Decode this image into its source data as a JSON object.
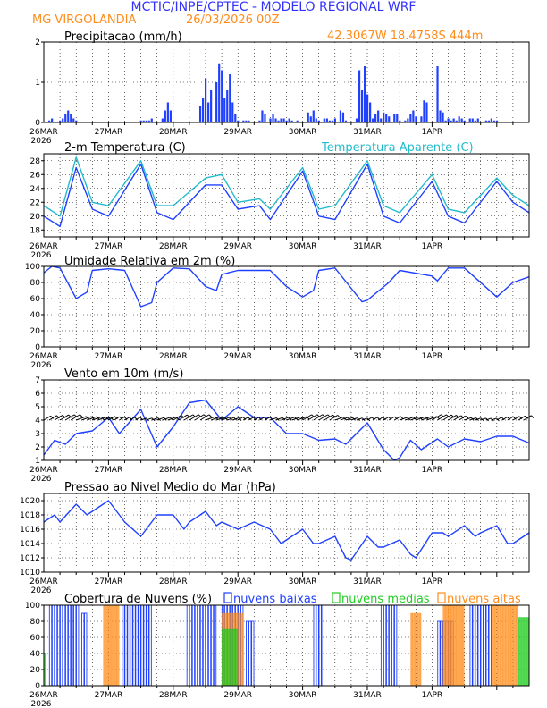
{
  "header": {
    "line1": "MCTIC/INPE/CPTEC - MODELO REGIONAL WRF",
    "location": "MG VIRGOLANDIA",
    "run": "26/03/2026 00Z",
    "coords": "42.3067W 18.4758S 444m",
    "colors": {
      "title": "#3333ff",
      "accent": "#ff8c1a"
    }
  },
  "chart_data": [
    {
      "type": "bar",
      "title": "Precipitacao (mm/h)",
      "ylim": [
        0,
        2
      ],
      "yticks": [
        "0",
        "1",
        "2"
      ],
      "x_labels": [
        "26MAR\n2026",
        "27MAR",
        "28MAR",
        "29MAR",
        "30MAR",
        "31MAR",
        "1APR"
      ],
      "color": "#2040ff",
      "hours": [
        2,
        3,
        6,
        7,
        8,
        9,
        10,
        11,
        12,
        36,
        37,
        38,
        39,
        40,
        44,
        45,
        46,
        47,
        58,
        59,
        60,
        61,
        62,
        64,
        65,
        66,
        67,
        68,
        69,
        70,
        71,
        72,
        74,
        75,
        76,
        80,
        81,
        82,
        84,
        85,
        86,
        87,
        88,
        89,
        90,
        91,
        92,
        94,
        98,
        99,
        100,
        101,
        102,
        104,
        105,
        106,
        107,
        108,
        110,
        111,
        112,
        116,
        117,
        118,
        119,
        120,
        121,
        122,
        123,
        124,
        125,
        126,
        127,
        128,
        130,
        131,
        132,
        134,
        135,
        136,
        137,
        138,
        140,
        141,
        142,
        146,
        147,
        148,
        149,
        150,
        151,
        152,
        153,
        154,
        155,
        156,
        158,
        159,
        160,
        161,
        164,
        165,
        166,
        167,
        168
      ],
      "values": [
        0.05,
        0.1,
        0.05,
        0.1,
        0.2,
        0.3,
        0.2,
        0.1,
        0.05,
        0.05,
        0.05,
        0.05,
        0.05,
        0.1,
        0.1,
        0.3,
        0.5,
        0.3,
        0.4,
        0.6,
        1.1,
        0.5,
        0.8,
        1.0,
        1.45,
        1.3,
        0.6,
        0.8,
        1.2,
        0.5,
        0.2,
        0.05,
        0.05,
        0.05,
        0.05,
        0.05,
        0.3,
        0.2,
        0.1,
        0.2,
        0.1,
        0.05,
        0.1,
        0.1,
        0.05,
        0.1,
        0.05,
        0.05,
        0.25,
        0.15,
        0.3,
        0.1,
        0.05,
        0.1,
        0.1,
        0.05,
        0.05,
        0.1,
        0.3,
        0.25,
        0.05,
        0.1,
        1.3,
        0.8,
        1.4,
        0.7,
        0.5,
        0.1,
        0.2,
        0.3,
        0.1,
        0.25,
        0.2,
        0.15,
        0.2,
        0.2,
        0.05,
        0.05,
        0.1,
        0.2,
        0.3,
        0.15,
        0.15,
        0.55,
        0.5,
        1.4,
        0.3,
        0.25,
        0.05,
        0.1,
        0.05,
        0.1,
        0.05,
        0.15,
        0.1,
        0.05,
        0.1,
        0.1,
        0.05,
        0.1,
        0.05,
        0.05,
        0.1,
        0.05,
        0.05
      ]
    },
    {
      "type": "line",
      "title": "2-m Temperatura (C)",
      "title2": "Temperatura Aparente (C)",
      "ylim": [
        17,
        29
      ],
      "yticks": [
        "18",
        "20",
        "22",
        "24",
        "26",
        "28"
      ],
      "x_labels": [
        "26MAR\n2026",
        "27MAR",
        "28MAR",
        "29MAR",
        "30MAR",
        "31MAR",
        "1APR"
      ],
      "series": [
        {
          "name": "2-m Temperatura (C)",
          "color": "#2040ff",
          "x": [
            0,
            6,
            12,
            18,
            24,
            36,
            42,
            48,
            60,
            66,
            72,
            80,
            84,
            96,
            102,
            108,
            120,
            126,
            132,
            144,
            150,
            156,
            168,
            174,
            180
          ],
          "values": [
            20,
            18.5,
            27,
            21,
            20,
            27.5,
            20.5,
            19.5,
            24.5,
            24.5,
            21,
            21.5,
            19.5,
            26.5,
            20,
            19.5,
            27.5,
            20,
            19,
            25,
            20,
            19,
            25,
            22,
            20.5
          ]
        },
        {
          "name": "Temperatura Aparente (C)",
          "color": "#22bbcc",
          "x": [
            0,
            6,
            12,
            18,
            24,
            36,
            42,
            48,
            60,
            66,
            72,
            80,
            84,
            96,
            102,
            108,
            120,
            126,
            132,
            144,
            150,
            156,
            168,
            174,
            180
          ],
          "values": [
            21.5,
            20,
            28.5,
            22,
            21.5,
            28,
            21.5,
            21.5,
            25.5,
            26,
            22,
            22.5,
            21,
            27,
            21,
            21.5,
            28,
            21.5,
            20.5,
            26,
            21,
            20.5,
            25.5,
            23,
            21.5
          ]
        }
      ]
    },
    {
      "type": "line",
      "title": "Umidade Relativa em 2m (%)",
      "ylim": [
        0,
        100
      ],
      "yticks": [
        "0",
        "20",
        "40",
        "60",
        "80",
        "100"
      ],
      "x_labels": [
        "26MAR\n2026",
        "27MAR",
        "28MAR",
        "29MAR",
        "30MAR",
        "31MAR",
        "1APR"
      ],
      "series": [
        {
          "name": "Umidade Relativa em 2m (%)",
          "color": "#2040ff",
          "x": [
            0,
            3,
            6,
            12,
            16,
            18,
            24,
            30,
            36,
            40,
            42,
            48,
            54,
            60,
            64,
            66,
            72,
            84,
            90,
            96,
            100,
            102,
            108,
            118,
            120,
            128,
            132,
            144,
            146,
            150,
            156,
            168,
            170,
            174,
            180
          ],
          "values": [
            92,
            100,
            98,
            60,
            68,
            95,
            97,
            95,
            50,
            55,
            80,
            98,
            97,
            75,
            70,
            90,
            95,
            95,
            75,
            62,
            70,
            95,
            98,
            56,
            58,
            80,
            95,
            88,
            82,
            98,
            98,
            62,
            68,
            80,
            87
          ]
        }
      ]
    },
    {
      "type": "line",
      "title": "Vento em 10m (m/s)",
      "ylim": [
        1,
        7
      ],
      "yticks": [
        "1",
        "2",
        "3",
        "4",
        "5",
        "6",
        "7"
      ],
      "x_labels": [
        "26MAR\n2026",
        "27MAR",
        "28MAR",
        "29MAR",
        "30MAR",
        "31MAR",
        "1APR"
      ],
      "series": [
        {
          "name": "Vento em 10m (m/s)",
          "color": "#2040ff",
          "x": [
            0,
            4,
            8,
            12,
            18,
            24,
            28,
            36,
            42,
            48,
            54,
            60,
            66,
            72,
            78,
            84,
            90,
            96,
            102,
            108,
            112,
            120,
            126,
            130,
            132,
            136,
            140,
            146,
            150,
            156,
            162,
            168,
            174,
            180
          ],
          "values": [
            1.4,
            2.5,
            2.2,
            3.0,
            3.2,
            4.2,
            3.0,
            4.8,
            2.0,
            3.5,
            5.3,
            5.5,
            4.0,
            5.0,
            4.2,
            4.2,
            3.0,
            3.0,
            2.5,
            2.6,
            2.2,
            3.8,
            1.8,
            1.0,
            1.2,
            2.5,
            1.8,
            2.6,
            2.0,
            2.6,
            2.4,
            2.8,
            2.8,
            2.3
          ]
        }
      ],
      "barb_color": "#000000"
    },
    {
      "type": "line",
      "title": "Pressao ao Nivel Medio do Mar (hPa)",
      "ylim": [
        1010,
        1021
      ],
      "yticks": [
        "1010",
        "1012",
        "1014",
        "1016",
        "1018",
        "1020"
      ],
      "x_labels": [
        "26MAR\n2026",
        "27MAR",
        "28MAR",
        "29MAR",
        "30MAR",
        "31MAR",
        "1APR"
      ],
      "series": [
        {
          "name": "Pressao ao Nivel Medio do Mar (hPa)",
          "color": "#2040ff",
          "x": [
            0,
            4,
            6,
            12,
            16,
            18,
            24,
            28,
            30,
            36,
            42,
            48,
            52,
            54,
            60,
            64,
            66,
            72,
            78,
            84,
            88,
            90,
            96,
            100,
            102,
            108,
            112,
            114,
            120,
            124,
            126,
            132,
            136,
            138,
            144,
            148,
            150,
            156,
            160,
            162,
            168,
            172,
            174,
            180
          ],
          "values": [
            1017,
            1018,
            1017,
            1019.5,
            1018,
            1018.5,
            1020,
            1018,
            1017,
            1015,
            1018,
            1018,
            1016,
            1017,
            1018.5,
            1016.5,
            1017,
            1016,
            1017,
            1016,
            1014,
            1014.5,
            1016,
            1014,
            1014,
            1015,
            1012,
            1011.7,
            1015,
            1013.5,
            1013.5,
            1014.5,
            1012.5,
            1012,
            1015.5,
            1015.5,
            1015,
            1016.5,
            1015,
            1015.5,
            1016.5,
            1014,
            1014,
            1015.5
          ]
        }
      ]
    },
    {
      "type": "bar",
      "title": "Cobertura de Nuvens (%)",
      "ylim": [
        0,
        100
      ],
      "yticks": [
        "0",
        "20",
        "40",
        "60",
        "80",
        "100"
      ],
      "x_labels": [
        "26MAR\n2026",
        "27MAR",
        "28MAR",
        "29MAR",
        "30MAR",
        "31MAR",
        "1APR"
      ],
      "legend": [
        {
          "name": "nuvens baixas",
          "color": "#2040ff"
        },
        {
          "name": "nuvens medias",
          "color": "#22cc22"
        },
        {
          "name": "nuvens altas",
          "color": "#ff8c1a"
        }
      ],
      "segments": [
        {
          "layer": "nuvens baixas",
          "start": 2,
          "end": 13,
          "value": 100
        },
        {
          "layer": "nuvens baixas",
          "start": 14,
          "end": 16,
          "value": 90
        },
        {
          "layer": "nuvens baixas",
          "start": 29,
          "end": 40,
          "value": 100
        },
        {
          "layer": "nuvens baixas",
          "start": 53,
          "end": 64,
          "value": 100
        },
        {
          "layer": "nuvens baixas",
          "start": 66,
          "end": 74,
          "value": 100
        },
        {
          "layer": "nuvens baixas",
          "start": 75,
          "end": 78,
          "value": 80
        },
        {
          "layer": "nuvens baixas",
          "start": 100,
          "end": 104,
          "value": 100
        },
        {
          "layer": "nuvens baixas",
          "start": 125,
          "end": 131,
          "value": 100
        },
        {
          "layer": "nuvens baixas",
          "start": 146,
          "end": 152,
          "value": 80
        },
        {
          "layer": "nuvens baixas",
          "start": 158,
          "end": 166,
          "value": 100
        },
        {
          "layer": "nuvens altas",
          "start": 22,
          "end": 28,
          "value": 100
        },
        {
          "layer": "nuvens altas",
          "start": 66,
          "end": 74,
          "value": 90
        },
        {
          "layer": "nuvens altas",
          "start": 136,
          "end": 140,
          "value": 90
        },
        {
          "layer": "nuvens altas",
          "start": 148,
          "end": 156,
          "value": 100
        },
        {
          "layer": "nuvens altas",
          "start": 166,
          "end": 176,
          "value": 100
        },
        {
          "layer": "nuvens medias",
          "start": 0,
          "end": 1,
          "value": 40
        },
        {
          "layer": "nuvens medias",
          "start": 66,
          "end": 72,
          "value": 70
        },
        {
          "layer": "nuvens medias",
          "start": 176,
          "end": 180,
          "value": 85
        }
      ]
    }
  ]
}
